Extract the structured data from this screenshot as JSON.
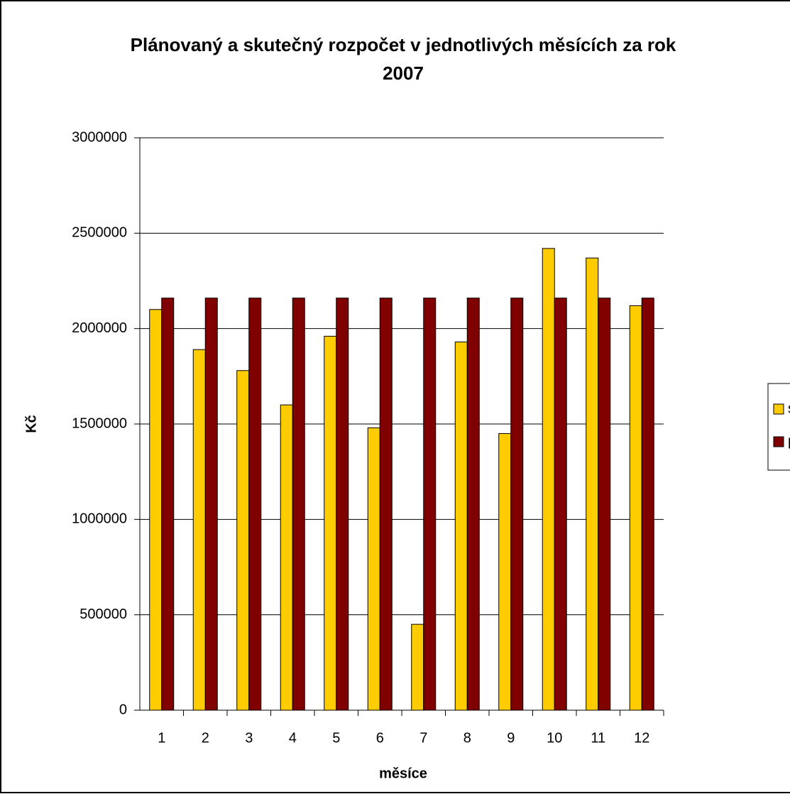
{
  "chart_data": {
    "type": "bar",
    "title": "Plánovaný a skutečný rozpočet v jednotlivých měsících za rok",
    "subtitle": "2007",
    "x_label": "měsíce",
    "y_label": "Kč",
    "categories": [
      "1",
      "2",
      "3",
      "4",
      "5",
      "6",
      "7",
      "8",
      "9",
      "10",
      "11",
      "12"
    ],
    "series": [
      {
        "name": "skutečnost",
        "color": "#ffcc00",
        "values": [
          2100000,
          1890000,
          1780000,
          1600000,
          1960000,
          1480000,
          450000,
          1930000,
          1450000,
          2420000,
          2370000,
          2120000
        ]
      },
      {
        "name": "plán",
        "color": "#800000",
        "values": [
          2160000,
          2160000,
          2160000,
          2160000,
          2160000,
          2160000,
          2160000,
          2160000,
          2160000,
          2160000,
          2160000,
          2160000
        ]
      }
    ],
    "ylim": [
      0,
      3000000
    ],
    "yticks": [
      0,
      500000,
      1000000,
      1500000,
      2000000,
      2500000,
      3000000
    ],
    "grid": true,
    "legend": "right"
  }
}
